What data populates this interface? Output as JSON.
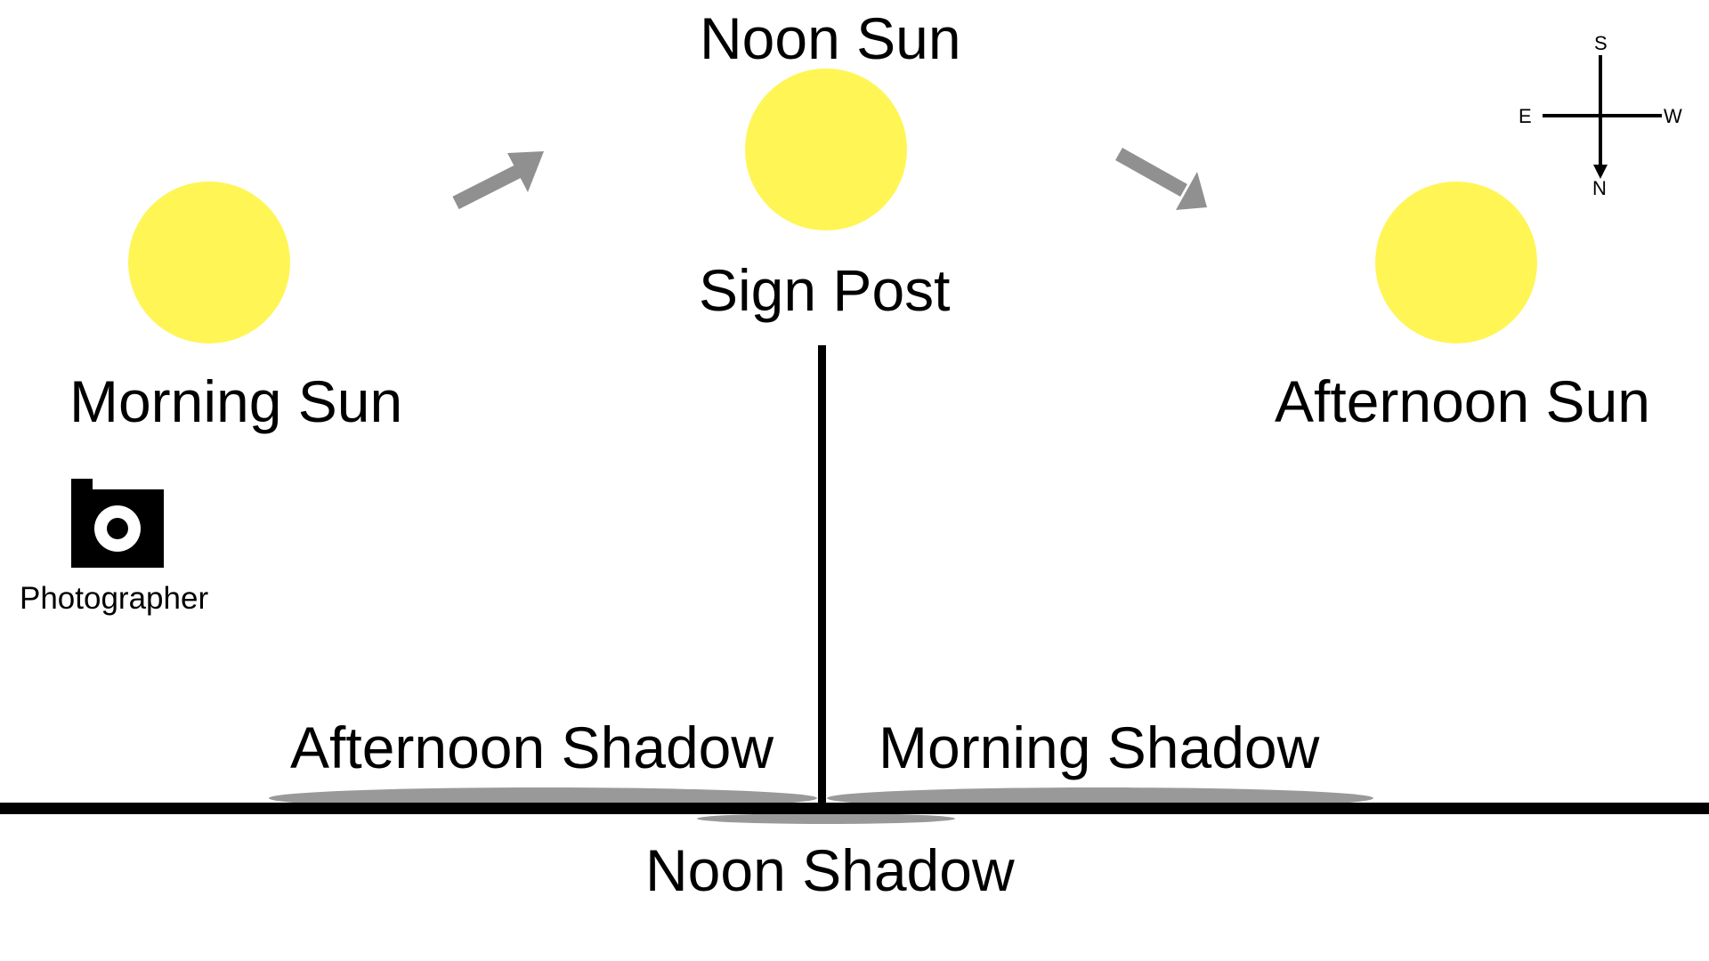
{
  "colors": {
    "sun": "#FFF555",
    "shadow": "#999999",
    "arrow": "#909090",
    "ink": "#000000",
    "background": "#FFFFFF"
  },
  "labels": {
    "noon_sun": "Noon Sun",
    "morning_sun": "Morning Sun",
    "afternoon_sun": "Afternoon Sun",
    "sign_post": "Sign Post",
    "photographer": "Photographer",
    "afternoon_shadow": "Afternoon Shadow",
    "morning_shadow": "Morning Shadow",
    "noon_shadow": "Noon Shadow"
  },
  "compass": {
    "north": "N",
    "south": "S",
    "east": "E",
    "west": "W"
  },
  "icons": {
    "camera": "camera-icon",
    "sun": "sun-icon",
    "arrow": "arrow-icon"
  }
}
